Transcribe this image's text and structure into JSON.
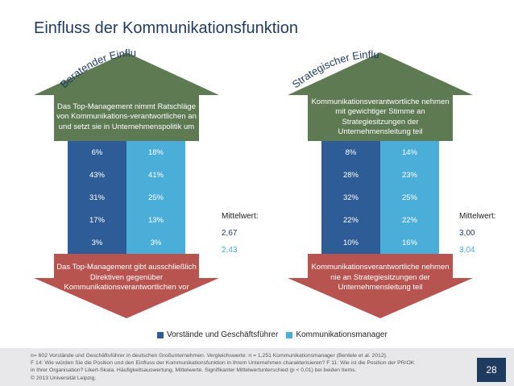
{
  "title": "Einfluss der Kommunikationsfunktion",
  "chart_data": {
    "type": "table",
    "series_names": [
      "Vorstände und Geschäftsführer",
      "Kommunikationsmanager"
    ],
    "panels": [
      {
        "arc_label": "Beratender Einfluss",
        "top_label": "Das Top-Management nimmt Ratschläge von Kommunikations-verantwortlichen an und setzt sie in Unternehmenspolitik um",
        "bottom_label": "Das Top-Management gibt ausschließlich Direktiven gegenüber Kommunikationsverantwortlichen vor",
        "rows": [
          [
            "6%",
            "18%"
          ],
          [
            "43%",
            "41%"
          ],
          [
            "31%",
            "25%"
          ],
          [
            "17%",
            "13%"
          ],
          [
            "3%",
            "3%"
          ]
        ],
        "mittelwert_label": "Mittelwert:",
        "mittelwert_1": "2,67",
        "mittelwert_2": "2,43"
      },
      {
        "arc_label": "Strategischer Einfluss",
        "top_label": "Kommunikationsverantwortliche nehmen mit gewichtiger Stimme an Strategiesitzungen der Unternehmensleitung teil",
        "bottom_label": "Kommunikationsverantwortliche nehmen nie an Strategiesitzungen der Unternehmensleitung teil",
        "rows": [
          [
            "8%",
            "14%"
          ],
          [
            "28%",
            "23%"
          ],
          [
            "32%",
            "25%"
          ],
          [
            "22%",
            "22%"
          ],
          [
            "10%",
            "16%"
          ]
        ],
        "mittelwert_label": "Mittelwert:",
        "mittelwert_1": "3,00",
        "mittelwert_2": "3,04"
      }
    ]
  },
  "colors": {
    "arrow_green": "#5d7a53",
    "arrow_red": "#b85450",
    "series_1": "#2d5c96",
    "series_2": "#4aaed8",
    "title": "#1f3a5f"
  },
  "legend": [
    "Vorstände und Geschäftsführer",
    "Kommunikationsmanager"
  ],
  "footnote": {
    "line1": "n= 602 Vorstände und Geschäftsführer in deutschen Großunternehmen. Vergleichswerte: n = 1.251 Kommunikationsmanager (Bentele et al. 2012).",
    "line2": "F 14: Wie würden Sie die Position und den Einfluss der Kommunikationsfunktion in Ihrem Unternehmen charakterisieren? F 11: Wie ist die Position der PR/OK",
    "line3": "in Ihrer Organisation? Likert-Skala. Häufigkeitsauswertung, Mittelwerte. Signifikanter Mittelwertunterschied (p < 0,01) bei beiden Items.",
    "line4": "© 2013 Universität Leipzig."
  },
  "page_number": "28"
}
